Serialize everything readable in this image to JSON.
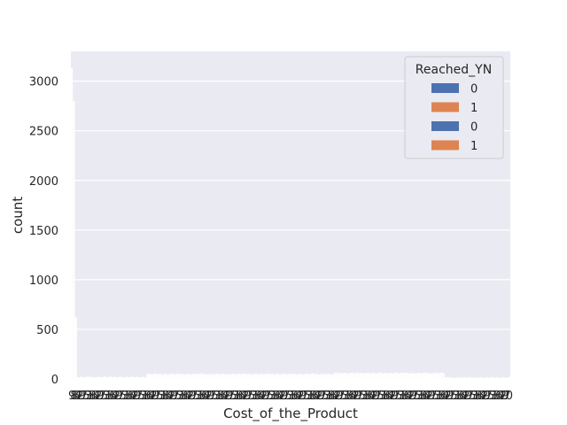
{
  "chart_data": {
    "type": "bar",
    "title": "",
    "xlabel": "Cost_of_the_Product",
    "ylabel": "count",
    "ylim": [
      0,
      3300
    ],
    "yticks": [
      0,
      500,
      1000,
      1500,
      2000,
      2500,
      3000
    ],
    "grid": true,
    "legend": {
      "title": "Reached_YN",
      "placement": "top-right",
      "entries": [
        {
          "label": "0",
          "color": "#4c72b0"
        },
        {
          "label": "1",
          "color": "#dd8452"
        },
        {
          "label": "0",
          "color": "#4c72b0"
        },
        {
          "label": "1",
          "color": "#dd8452"
        }
      ]
    },
    "colors": {
      "background": "#eaeaf2",
      "grid": "#ffffff",
      "bars": "#ffffff",
      "series_0": "#4c72b0",
      "series_1": "#dd8452"
    },
    "x_first_tick_label": "9",
    "x_last_tick_label": "0",
    "category_count": 215,
    "notable_values": [
      {
        "position": "first",
        "value": 3130
      },
      {
        "position": "second",
        "value": 2800
      },
      {
        "position": "third",
        "value": 620
      }
    ],
    "segments": [
      {
        "from_fraction": 0.0,
        "to_fraction": 0.17,
        "typical_value": 20
      },
      {
        "from_fraction": 0.17,
        "to_fraction": 0.6,
        "typical_value": 50
      },
      {
        "from_fraction": 0.6,
        "to_fraction": 0.85,
        "typical_value": 60
      },
      {
        "from_fraction": 0.85,
        "to_fraction": 1.0,
        "typical_value": 15
      }
    ]
  }
}
